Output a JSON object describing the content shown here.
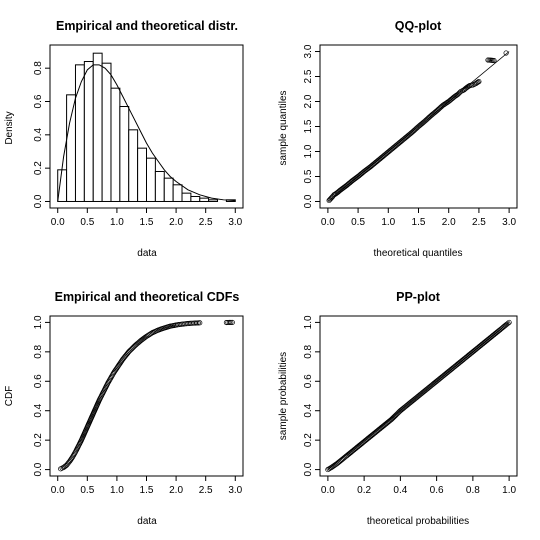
{
  "chart_data": [
    {
      "id": "density",
      "type": "bar",
      "title": "Empirical and theoretical distr.",
      "xlabel": "data",
      "ylabel": "Density",
      "xlim": [
        0,
        3.0
      ],
      "ylim": [
        0,
        0.9
      ],
      "xticks": [
        "0.0",
        "0.5",
        "1.0",
        "1.5",
        "2.0",
        "2.5",
        "3.0"
      ],
      "yticks": [
        "0.0",
        "0.2",
        "0.4",
        "0.6",
        "0.8"
      ],
      "bin_edges": [
        0.0,
        0.15,
        0.3,
        0.45,
        0.6,
        0.75,
        0.9,
        1.05,
        1.2,
        1.35,
        1.5,
        1.65,
        1.8,
        1.95,
        2.1,
        2.25,
        2.4,
        2.55,
        2.7,
        2.85,
        3.0
      ],
      "values": [
        0.19,
        0.64,
        0.82,
        0.84,
        0.89,
        0.83,
        0.68,
        0.57,
        0.43,
        0.32,
        0.26,
        0.18,
        0.14,
        0.1,
        0.05,
        0.03,
        0.02,
        0.01,
        0.0,
        0.01
      ],
      "theoretical": {
        "x": [
          0.0,
          0.1,
          0.2,
          0.3,
          0.4,
          0.5,
          0.6,
          0.7,
          0.8,
          0.9,
          1.0,
          1.1,
          1.2,
          1.3,
          1.4,
          1.5,
          1.6,
          1.7,
          1.8,
          1.9,
          2.0,
          2.2,
          2.4,
          2.6,
          2.8,
          3.0
        ],
        "y": [
          0.0,
          0.27,
          0.47,
          0.62,
          0.72,
          0.79,
          0.82,
          0.82,
          0.8,
          0.76,
          0.7,
          0.63,
          0.56,
          0.49,
          0.42,
          0.35,
          0.29,
          0.24,
          0.19,
          0.15,
          0.12,
          0.07,
          0.04,
          0.02,
          0.01,
          0.005
        ]
      }
    },
    {
      "id": "qq",
      "type": "scatter",
      "title": "QQ-plot",
      "xlabel": "theoretical quantiles",
      "ylabel": "sample quantiles",
      "xlim": [
        0,
        3.0
      ],
      "ylim": [
        0,
        3.0
      ],
      "xticks": [
        "0.0",
        "0.5",
        "1.0",
        "1.5",
        "2.0",
        "2.5",
        "3.0"
      ],
      "yticks": [
        "0.0",
        "0.5",
        "1.0",
        "1.5",
        "2.0",
        "2.5",
        "3.0"
      ],
      "reference_line": [
        [
          0,
          0
        ],
        [
          3.0,
          3.0
        ]
      ],
      "x": [
        0.02,
        0.05,
        0.08,
        0.1,
        0.15,
        0.2,
        0.3,
        0.4,
        0.5,
        0.6,
        0.7,
        0.8,
        0.9,
        1.0,
        1.1,
        1.2,
        1.3,
        1.4,
        1.5,
        1.6,
        1.7,
        1.8,
        1.9,
        2.0,
        2.05,
        2.1,
        2.15,
        2.2,
        2.25,
        2.3,
        2.35,
        2.4,
        2.45,
        2.5,
        2.65,
        2.75,
        2.95
      ],
      "y": [
        0.02,
        0.06,
        0.1,
        0.13,
        0.17,
        0.22,
        0.31,
        0.41,
        0.5,
        0.6,
        0.69,
        0.79,
        0.89,
        0.99,
        1.09,
        1.19,
        1.29,
        1.39,
        1.5,
        1.6,
        1.71,
        1.81,
        1.92,
        2.0,
        2.05,
        2.1,
        2.14,
        2.2,
        2.23,
        2.28,
        2.32,
        2.33,
        2.36,
        2.4,
        2.83,
        2.82,
        2.97
      ]
    },
    {
      "id": "cdf",
      "type": "scatter",
      "title": "Empirical and theoretical CDFs",
      "xlabel": "data",
      "ylabel": "CDF",
      "xlim": [
        0,
        3.0
      ],
      "ylim": [
        0,
        1.0
      ],
      "xticks": [
        "0.0",
        "0.5",
        "1.0",
        "1.5",
        "2.0",
        "2.5",
        "3.0"
      ],
      "yticks": [
        "0.0",
        "0.2",
        "0.4",
        "0.6",
        "0.8",
        "1.0"
      ],
      "x": [
        0.05,
        0.1,
        0.15,
        0.2,
        0.25,
        0.3,
        0.35,
        0.4,
        0.45,
        0.5,
        0.55,
        0.6,
        0.65,
        0.7,
        0.75,
        0.8,
        0.85,
        0.9,
        0.95,
        1.0,
        1.1,
        1.2,
        1.3,
        1.4,
        1.5,
        1.6,
        1.7,
        1.8,
        1.9,
        2.0,
        2.1,
        2.2,
        2.3,
        2.4,
        2.85,
        2.95
      ],
      "y": [
        0.005,
        0.015,
        0.03,
        0.055,
        0.085,
        0.12,
        0.16,
        0.2,
        0.245,
        0.29,
        0.335,
        0.38,
        0.425,
        0.47,
        0.51,
        0.55,
        0.59,
        0.625,
        0.66,
        0.69,
        0.75,
        0.8,
        0.84,
        0.875,
        0.905,
        0.93,
        0.948,
        0.962,
        0.974,
        0.982,
        0.988,
        0.992,
        0.995,
        0.997,
        0.999,
        1.0
      ]
    },
    {
      "id": "pp",
      "type": "scatter",
      "title": "PP-plot",
      "xlabel": "theoretical probabilities",
      "ylabel": "sample probabilities",
      "xlim": [
        0,
        1.0
      ],
      "ylim": [
        0,
        1.0
      ],
      "xticks": [
        "0.0",
        "0.2",
        "0.4",
        "0.6",
        "0.8",
        "1.0"
      ],
      "yticks": [
        "0.0",
        "0.2",
        "0.4",
        "0.6",
        "0.8",
        "1.0"
      ],
      "reference_line": [
        [
          0,
          0
        ],
        [
          1.0,
          1.0
        ]
      ],
      "x": [
        0.0,
        0.02,
        0.05,
        0.08,
        0.1,
        0.15,
        0.2,
        0.25,
        0.3,
        0.35,
        0.4,
        0.45,
        0.5,
        0.55,
        0.6,
        0.65,
        0.7,
        0.75,
        0.8,
        0.85,
        0.9,
        0.95,
        0.98,
        1.0
      ],
      "y": [
        0.0,
        0.015,
        0.04,
        0.07,
        0.09,
        0.14,
        0.19,
        0.24,
        0.29,
        0.34,
        0.4,
        0.45,
        0.5,
        0.55,
        0.6,
        0.65,
        0.7,
        0.75,
        0.8,
        0.85,
        0.9,
        0.95,
        0.98,
        1.0
      ]
    }
  ]
}
